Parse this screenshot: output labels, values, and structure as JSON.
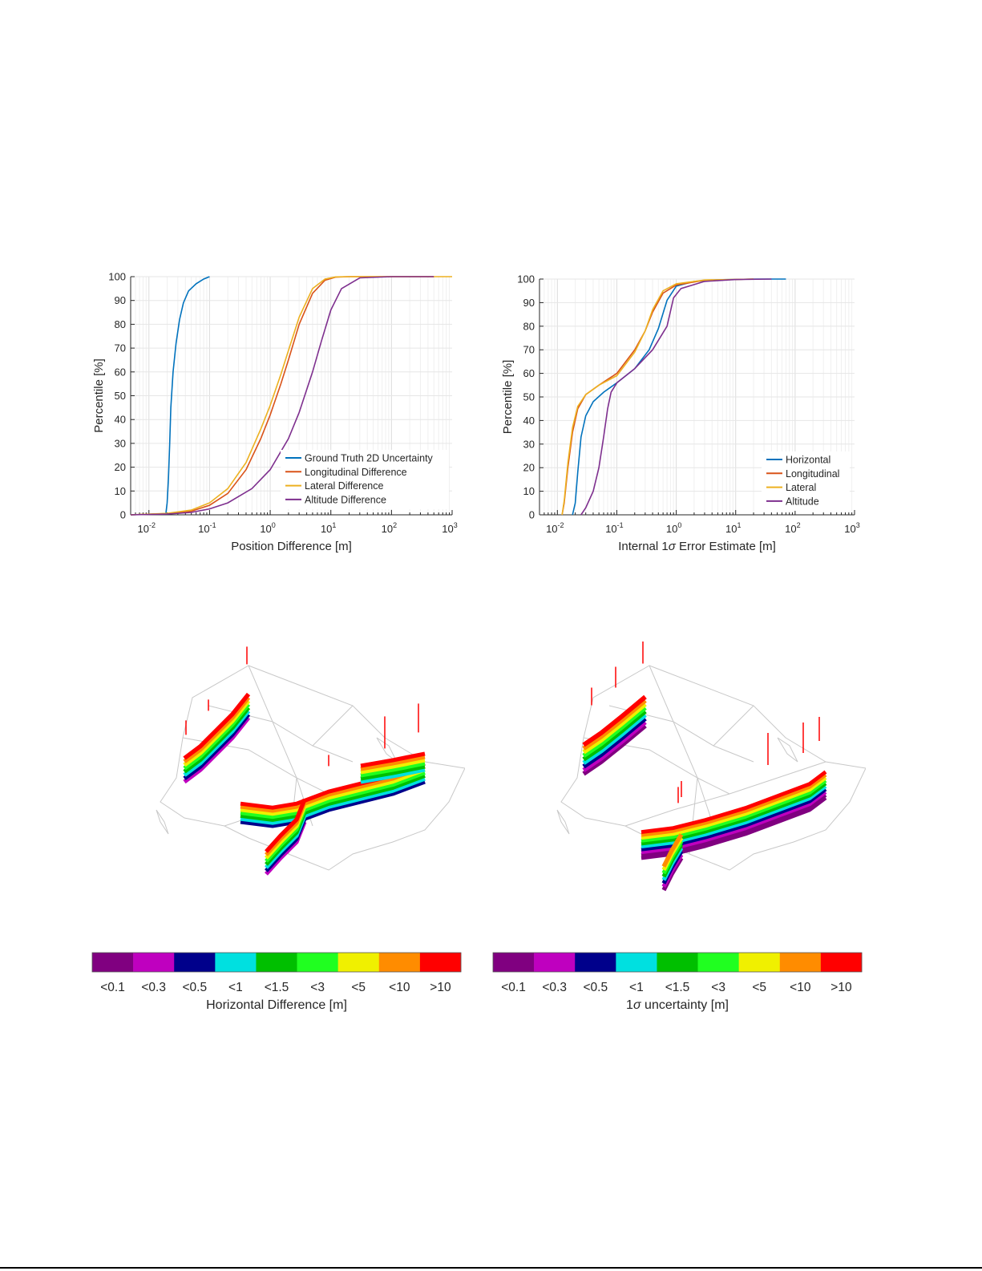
{
  "chart_data": [
    {
      "type": "line",
      "title": "",
      "xlabel": "Position Difference [m]",
      "ylabel": "Percentile [%]",
      "xscale": "log",
      "xlim": [
        0.005,
        1000
      ],
      "ylim": [
        0,
        100
      ],
      "grid": true,
      "legend_position": "bottom-right",
      "x_ticks": [
        "10",
        "10",
        "10",
        "10",
        "10",
        "10"
      ],
      "x_tick_exps": [
        "-2",
        "-1",
        "0",
        "1",
        "2",
        "3"
      ],
      "x_tick_values": [
        0.01,
        0.1,
        1,
        10,
        100,
        1000
      ],
      "y_ticks": [
        "0",
        "10",
        "20",
        "30",
        "40",
        "50",
        "60",
        "70",
        "80",
        "90",
        "100"
      ],
      "series": [
        {
          "name": "Ground Truth 2D Uncertainty",
          "color": "#0072BD",
          "x": [
            0.005,
            0.019,
            0.02,
            0.021,
            0.022,
            0.023,
            0.025,
            0.028,
            0.032,
            0.037,
            0.045,
            0.06,
            0.08,
            0.1
          ],
          "y": [
            0,
            0.5,
            5,
            15,
            30,
            45,
            60,
            72,
            82,
            89,
            94,
            97,
            99,
            100
          ]
        },
        {
          "name": "Longitudinal Difference",
          "color": "#D95319",
          "x": [
            0.005,
            0.02,
            0.05,
            0.1,
            0.2,
            0.4,
            0.7,
            1,
            1.5,
            2,
            3,
            5,
            8,
            12,
            20,
            500
          ],
          "y": [
            0,
            0.5,
            1.5,
            4,
            9,
            19,
            32,
            42,
            55,
            65,
            80,
            93,
            98.5,
            99.8,
            100,
            100
          ]
        },
        {
          "name": "Lateral Difference",
          "color": "#EDB120",
          "x": [
            0.005,
            0.02,
            0.05,
            0.1,
            0.2,
            0.4,
            0.7,
            1,
            1.5,
            2,
            3,
            5,
            8,
            12,
            20,
            1000
          ],
          "y": [
            0,
            0.6,
            2,
            5,
            11,
            22,
            36,
            46,
            59,
            69,
            83,
            95,
            99,
            99.9,
            100,
            100
          ]
        },
        {
          "name": "Altitude Difference",
          "color": "#7E2F8E",
          "x": [
            0.005,
            0.02,
            0.05,
            0.1,
            0.2,
            0.5,
            1,
            2,
            3,
            5,
            7,
            10,
            15,
            30,
            100,
            500
          ],
          "y": [
            0,
            0.3,
            1,
            2.5,
            5,
            11,
            19,
            32,
            43,
            60,
            73,
            86,
            95,
            99.5,
            100,
            100
          ]
        }
      ]
    },
    {
      "type": "line",
      "title": "",
      "xlabel_prefix": "Internal 1",
      "xlabel_sigma": "σ",
      "xlabel_suffix": " Error Estimate [m]",
      "ylabel": "Percentile [%]",
      "xscale": "log",
      "xlim": [
        0.005,
        1000
      ],
      "ylim": [
        0,
        100
      ],
      "grid": true,
      "legend_position": "bottom-right",
      "x_ticks": [
        "10",
        "10",
        "10",
        "10",
        "10",
        "10"
      ],
      "x_tick_exps": [
        "-2",
        "-1",
        "0",
        "1",
        "2",
        "3"
      ],
      "x_tick_values": [
        0.01,
        0.1,
        1,
        10,
        100,
        1000
      ],
      "y_ticks": [
        "0",
        "10",
        "20",
        "30",
        "40",
        "50",
        "60",
        "70",
        "80",
        "90",
        "100"
      ],
      "series": [
        {
          "name": "Horizontal",
          "color": "#0072BD",
          "x": [
            0.018,
            0.02,
            0.022,
            0.025,
            0.03,
            0.04,
            0.06,
            0.1,
            0.2,
            0.35,
            0.5,
            0.7,
            1,
            2,
            5,
            20,
            70
          ],
          "y": [
            0,
            5,
            18,
            33,
            42,
            48,
            52,
            56,
            62,
            70,
            79,
            91,
            97,
            99,
            99.7,
            100,
            100
          ]
        },
        {
          "name": "Longitudinal",
          "color": "#D95319",
          "x": [
            0.012,
            0.013,
            0.015,
            0.018,
            0.022,
            0.03,
            0.05,
            0.1,
            0.2,
            0.3,
            0.4,
            0.6,
            1,
            3,
            20
          ],
          "y": [
            0,
            5,
            20,
            35,
            45,
            51,
            55,
            60,
            70,
            78,
            86,
            94,
            97.5,
            99.5,
            100
          ]
        },
        {
          "name": "Lateral",
          "color": "#EDB120",
          "x": [
            0.012,
            0.013,
            0.015,
            0.018,
            0.022,
            0.03,
            0.05,
            0.1,
            0.2,
            0.3,
            0.4,
            0.6,
            1,
            3,
            20
          ],
          "y": [
            0,
            6,
            22,
            37,
            46,
            51,
            55,
            59,
            69,
            78,
            87,
            95,
            98,
            99.6,
            100
          ]
        },
        {
          "name": "Altitude",
          "color": "#7E2F8E",
          "x": [
            0.025,
            0.03,
            0.04,
            0.05,
            0.06,
            0.07,
            0.08,
            0.1,
            0.2,
            0.4,
            0.7,
            0.9,
            1.2,
            3,
            10,
            40
          ],
          "y": [
            0,
            3,
            10,
            20,
            33,
            45,
            52,
            56,
            62,
            70,
            80,
            92,
            96,
            99,
            99.8,
            100
          ]
        }
      ]
    }
  ],
  "maps": [
    {
      "colorbar_label": "Horizontal Difference [m]"
    },
    {
      "colorbar_label_prefix": "1",
      "colorbar_label_sigma": "σ",
      "colorbar_label_suffix": " uncertainty [m]"
    }
  ],
  "colorbar": {
    "bins": [
      {
        "label": "<0.1",
        "color": "#800080"
      },
      {
        "label": "<0.3",
        "color": "#BF00BF"
      },
      {
        "label": "<0.5",
        "color": "#00008B"
      },
      {
        "label": "<1",
        "color": "#00E0E0"
      },
      {
        "label": "<1.5",
        "color": "#00BF00"
      },
      {
        "label": "<3",
        "color": "#20FF20"
      },
      {
        "label": "<5",
        "color": "#F0F000"
      },
      {
        "label": "<10",
        "color": "#FF8C00"
      },
      {
        "label": ">10",
        "color": "#FF0000"
      }
    ]
  }
}
